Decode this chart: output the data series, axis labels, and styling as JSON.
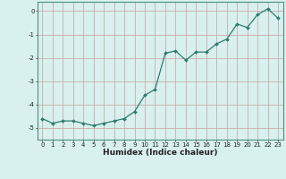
{
  "x": [
    0,
    1,
    2,
    3,
    4,
    5,
    6,
    7,
    8,
    9,
    10,
    11,
    12,
    13,
    14,
    15,
    16,
    17,
    18,
    19,
    20,
    21,
    22,
    23
  ],
  "y": [
    -4.6,
    -4.8,
    -4.7,
    -4.7,
    -4.8,
    -4.9,
    -4.8,
    -4.7,
    -4.6,
    -4.3,
    -3.6,
    -3.35,
    -1.8,
    -1.7,
    -2.1,
    -1.75,
    -1.75,
    -1.4,
    -1.2,
    -0.55,
    -0.7,
    -0.15,
    0.1,
    -0.3
  ],
  "line_color": "#2d7d6e",
  "marker": "D",
  "marker_size": 2.0,
  "linewidth": 0.9,
  "xlabel": "Humidex (Indice chaleur)",
  "xlim": [
    -0.5,
    23.5
  ],
  "ylim": [
    -5.5,
    0.4
  ],
  "yticks": [
    0,
    -1,
    -2,
    -3,
    -4,
    -5
  ],
  "ytick_labels": [
    "0",
    "-1",
    "-2",
    "-3",
    "-4",
    "-5"
  ],
  "xticks": [
    0,
    1,
    2,
    3,
    4,
    5,
    6,
    7,
    8,
    9,
    10,
    11,
    12,
    13,
    14,
    15,
    16,
    17,
    18,
    19,
    20,
    21,
    22,
    23
  ],
  "bg_color": "#d8f0ee",
  "grid_color": "#c8a0a0",
  "tick_label_fontsize": 5.0,
  "xlabel_fontsize": 6.5,
  "spine_color": "#4a9080"
}
